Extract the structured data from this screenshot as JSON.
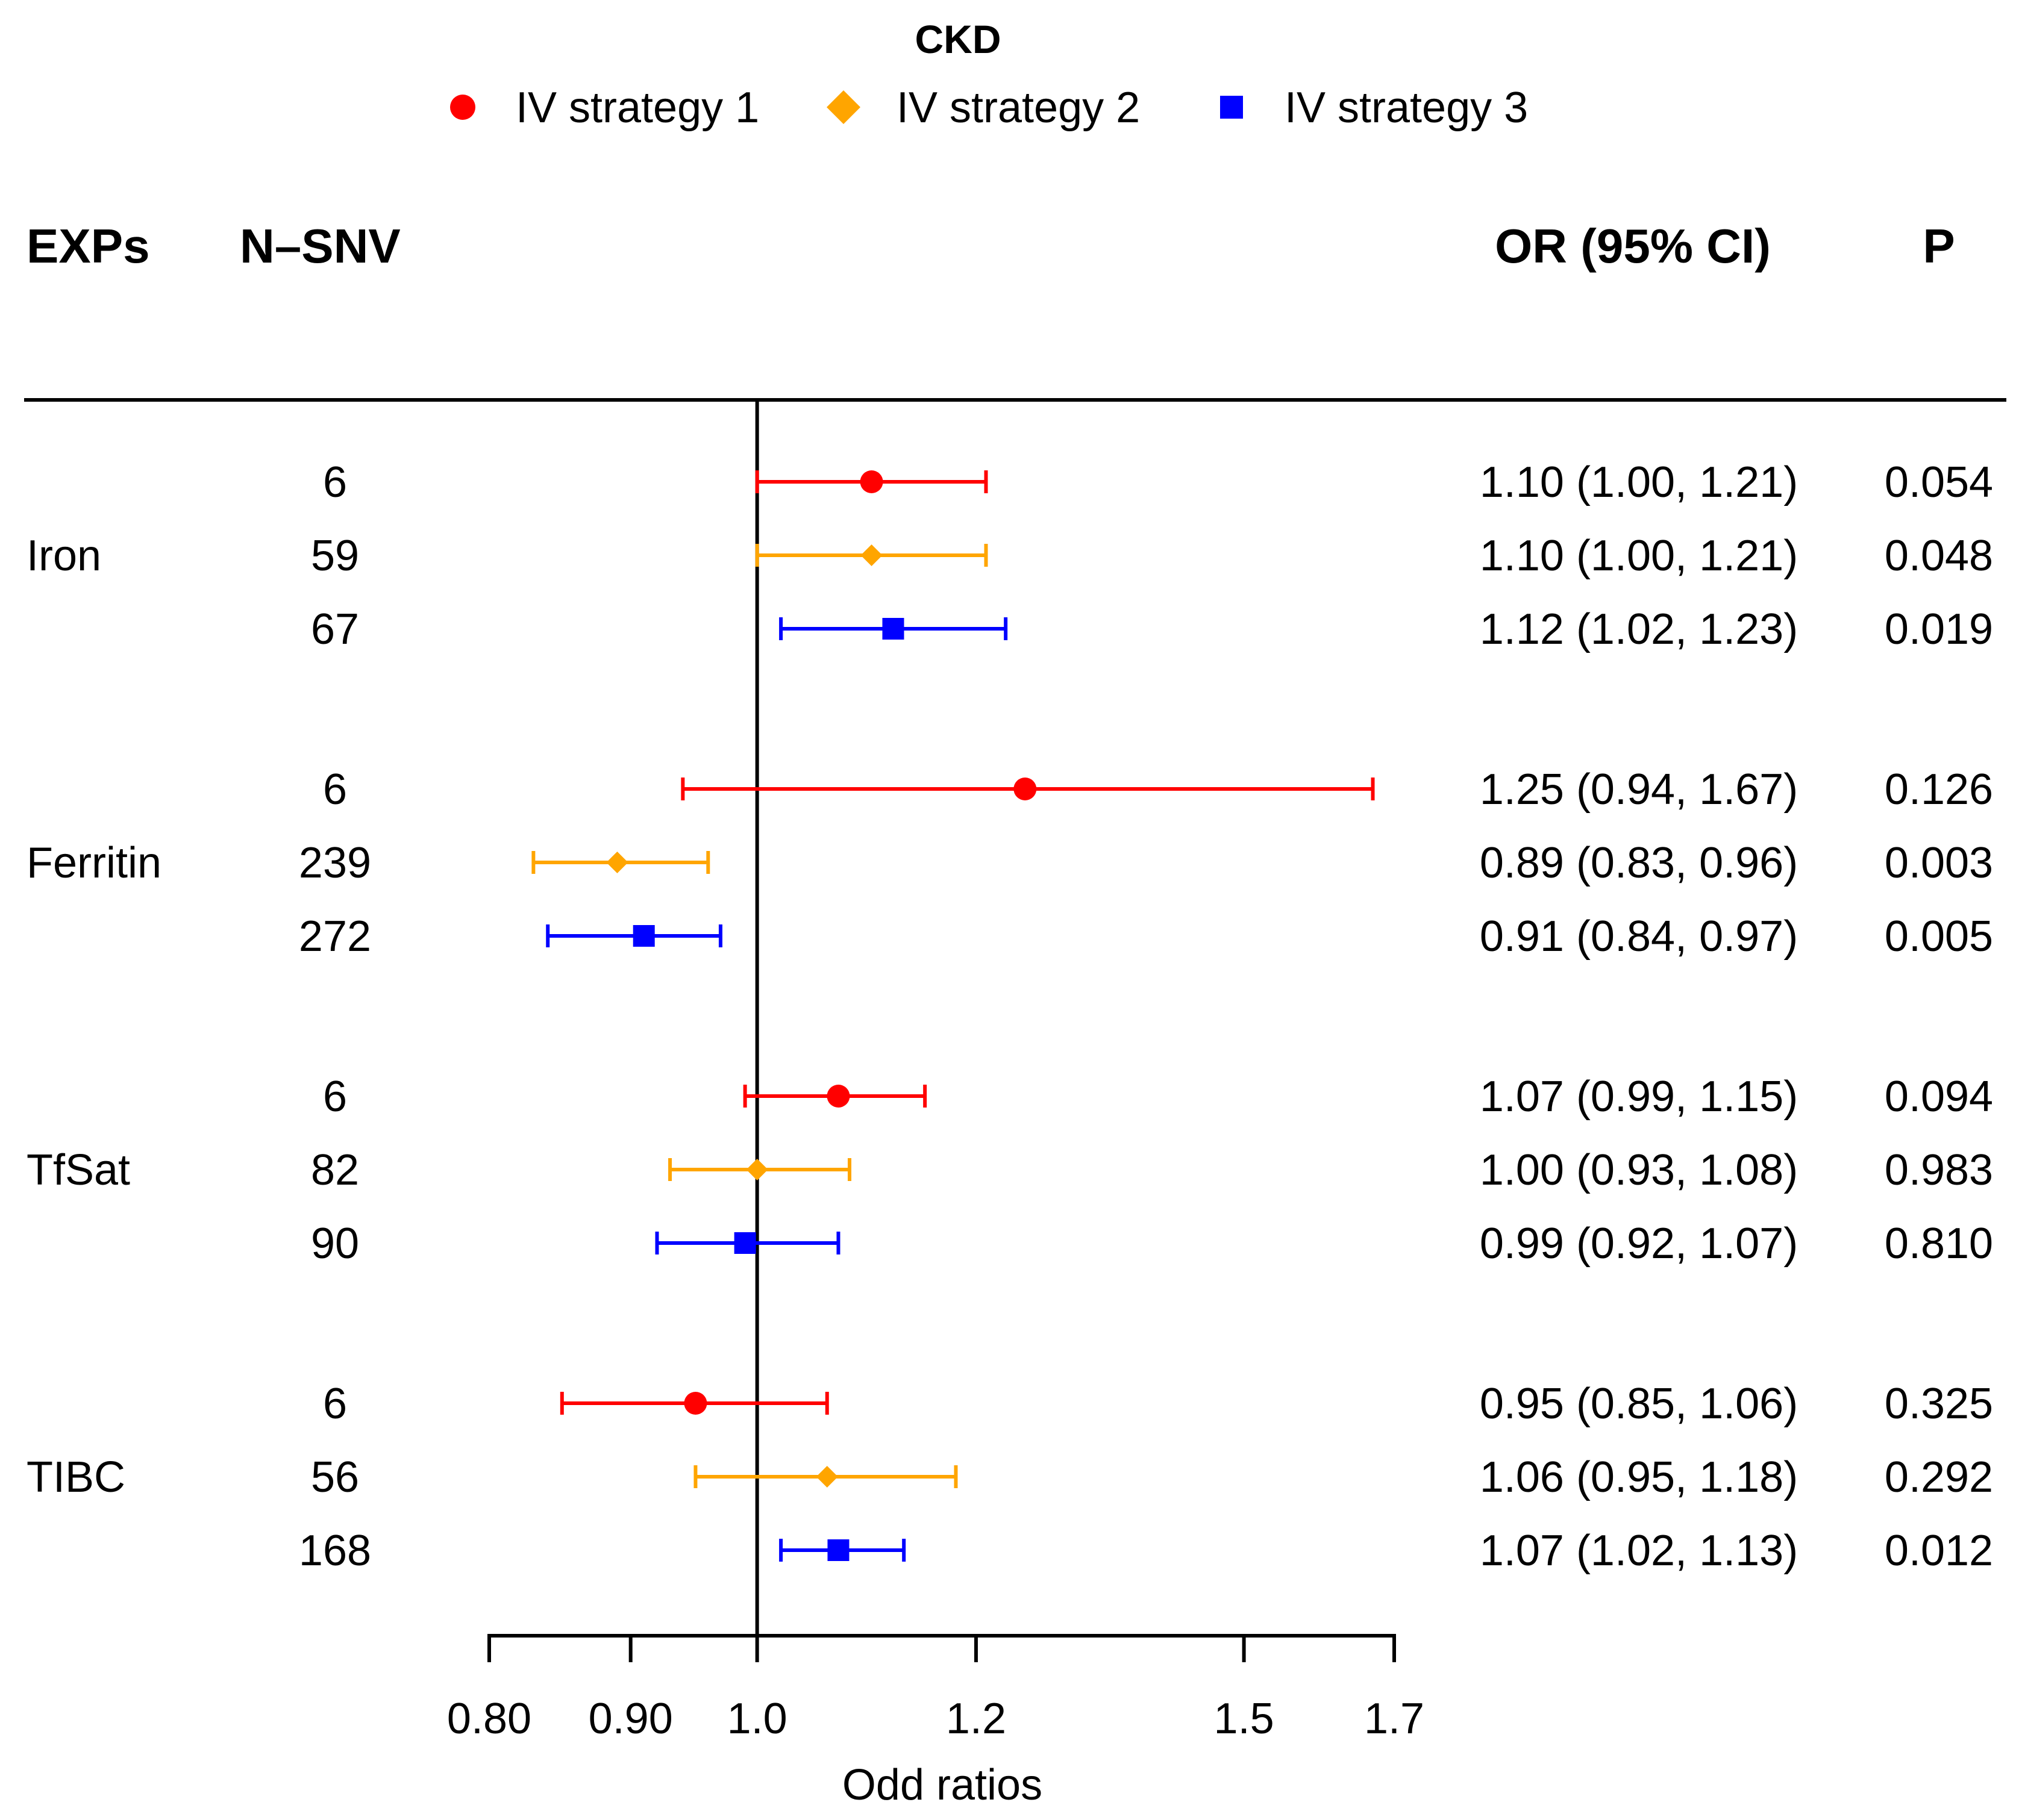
{
  "chart_data": {
    "type": "forest",
    "title": "CKD",
    "x_scale": "log",
    "reference_line": 1.0,
    "xlabel": "Odd ratios",
    "xlim": [
      0.8,
      1.7
    ],
    "ticks": [
      0.8,
      0.9,
      1.0,
      1.2,
      1.5,
      1.7
    ],
    "tick_labels": [
      "0.80",
      "0.90",
      "1.0",
      "1.2",
      "1.5",
      "1.7"
    ],
    "columns": {
      "exp": "EXPs",
      "n": "N–SNV",
      "or": "OR (95% CI)",
      "p": "P"
    },
    "series": [
      {
        "name": "IV strategy 1",
        "color": "#ff0000",
        "marker": "circle"
      },
      {
        "name": "IV strategy 2",
        "color": "#ffa500",
        "marker": "diamond"
      },
      {
        "name": "IV strategy 3",
        "color": "#0000ff",
        "marker": "square"
      }
    ],
    "groups": [
      {
        "exposure": "Iron",
        "rows": [
          {
            "strategy": 0,
            "n": "6",
            "or": 1.1,
            "lo": 1.0,
            "hi": 1.21,
            "or_text": "1.10 (1.00, 1.21)",
            "p": "0.054"
          },
          {
            "strategy": 1,
            "n": "59",
            "or": 1.1,
            "lo": 1.0,
            "hi": 1.21,
            "or_text": "1.10 (1.00, 1.21)",
            "p": "0.048"
          },
          {
            "strategy": 2,
            "n": "67",
            "or": 1.12,
            "lo": 1.02,
            "hi": 1.23,
            "or_text": "1.12 (1.02, 1.23)",
            "p": "0.019"
          }
        ]
      },
      {
        "exposure": "Ferritin",
        "rows": [
          {
            "strategy": 0,
            "n": "6",
            "or": 1.25,
            "lo": 0.94,
            "hi": 1.67,
            "or_text": "1.25 (0.94, 1.67)",
            "p": "0.126"
          },
          {
            "strategy": 1,
            "n": "239",
            "or": 0.89,
            "lo": 0.83,
            "hi": 0.96,
            "or_text": "0.89 (0.83, 0.96)",
            "p": "0.003"
          },
          {
            "strategy": 2,
            "n": "272",
            "or": 0.91,
            "lo": 0.84,
            "hi": 0.97,
            "or_text": "0.91 (0.84, 0.97)",
            "p": "0.005"
          }
        ]
      },
      {
        "exposure": "TfSat",
        "rows": [
          {
            "strategy": 0,
            "n": "6",
            "or": 1.07,
            "lo": 0.99,
            "hi": 1.15,
            "or_text": "1.07 (0.99, 1.15)",
            "p": "0.094"
          },
          {
            "strategy": 1,
            "n": "82",
            "or": 1.0,
            "lo": 0.93,
            "hi": 1.08,
            "or_text": "1.00 (0.93, 1.08)",
            "p": "0.983"
          },
          {
            "strategy": 2,
            "n": "90",
            "or": 0.99,
            "lo": 0.92,
            "hi": 1.07,
            "or_text": "0.99 (0.92, 1.07)",
            "p": "0.810"
          }
        ]
      },
      {
        "exposure": "TIBC",
        "rows": [
          {
            "strategy": 0,
            "n": "6",
            "or": 0.95,
            "lo": 0.85,
            "hi": 1.06,
            "or_text": "0.95 (0.85, 1.06)",
            "p": "0.325"
          },
          {
            "strategy": 1,
            "n": "56",
            "or": 1.06,
            "lo": 0.95,
            "hi": 1.18,
            "or_text": "1.06 (0.95, 1.18)",
            "p": "0.292"
          },
          {
            "strategy": 2,
            "n": "168",
            "or": 1.07,
            "lo": 1.02,
            "hi": 1.13,
            "or_text": "1.07 (1.02, 1.13)",
            "p": "0.012"
          }
        ]
      }
    ]
  }
}
